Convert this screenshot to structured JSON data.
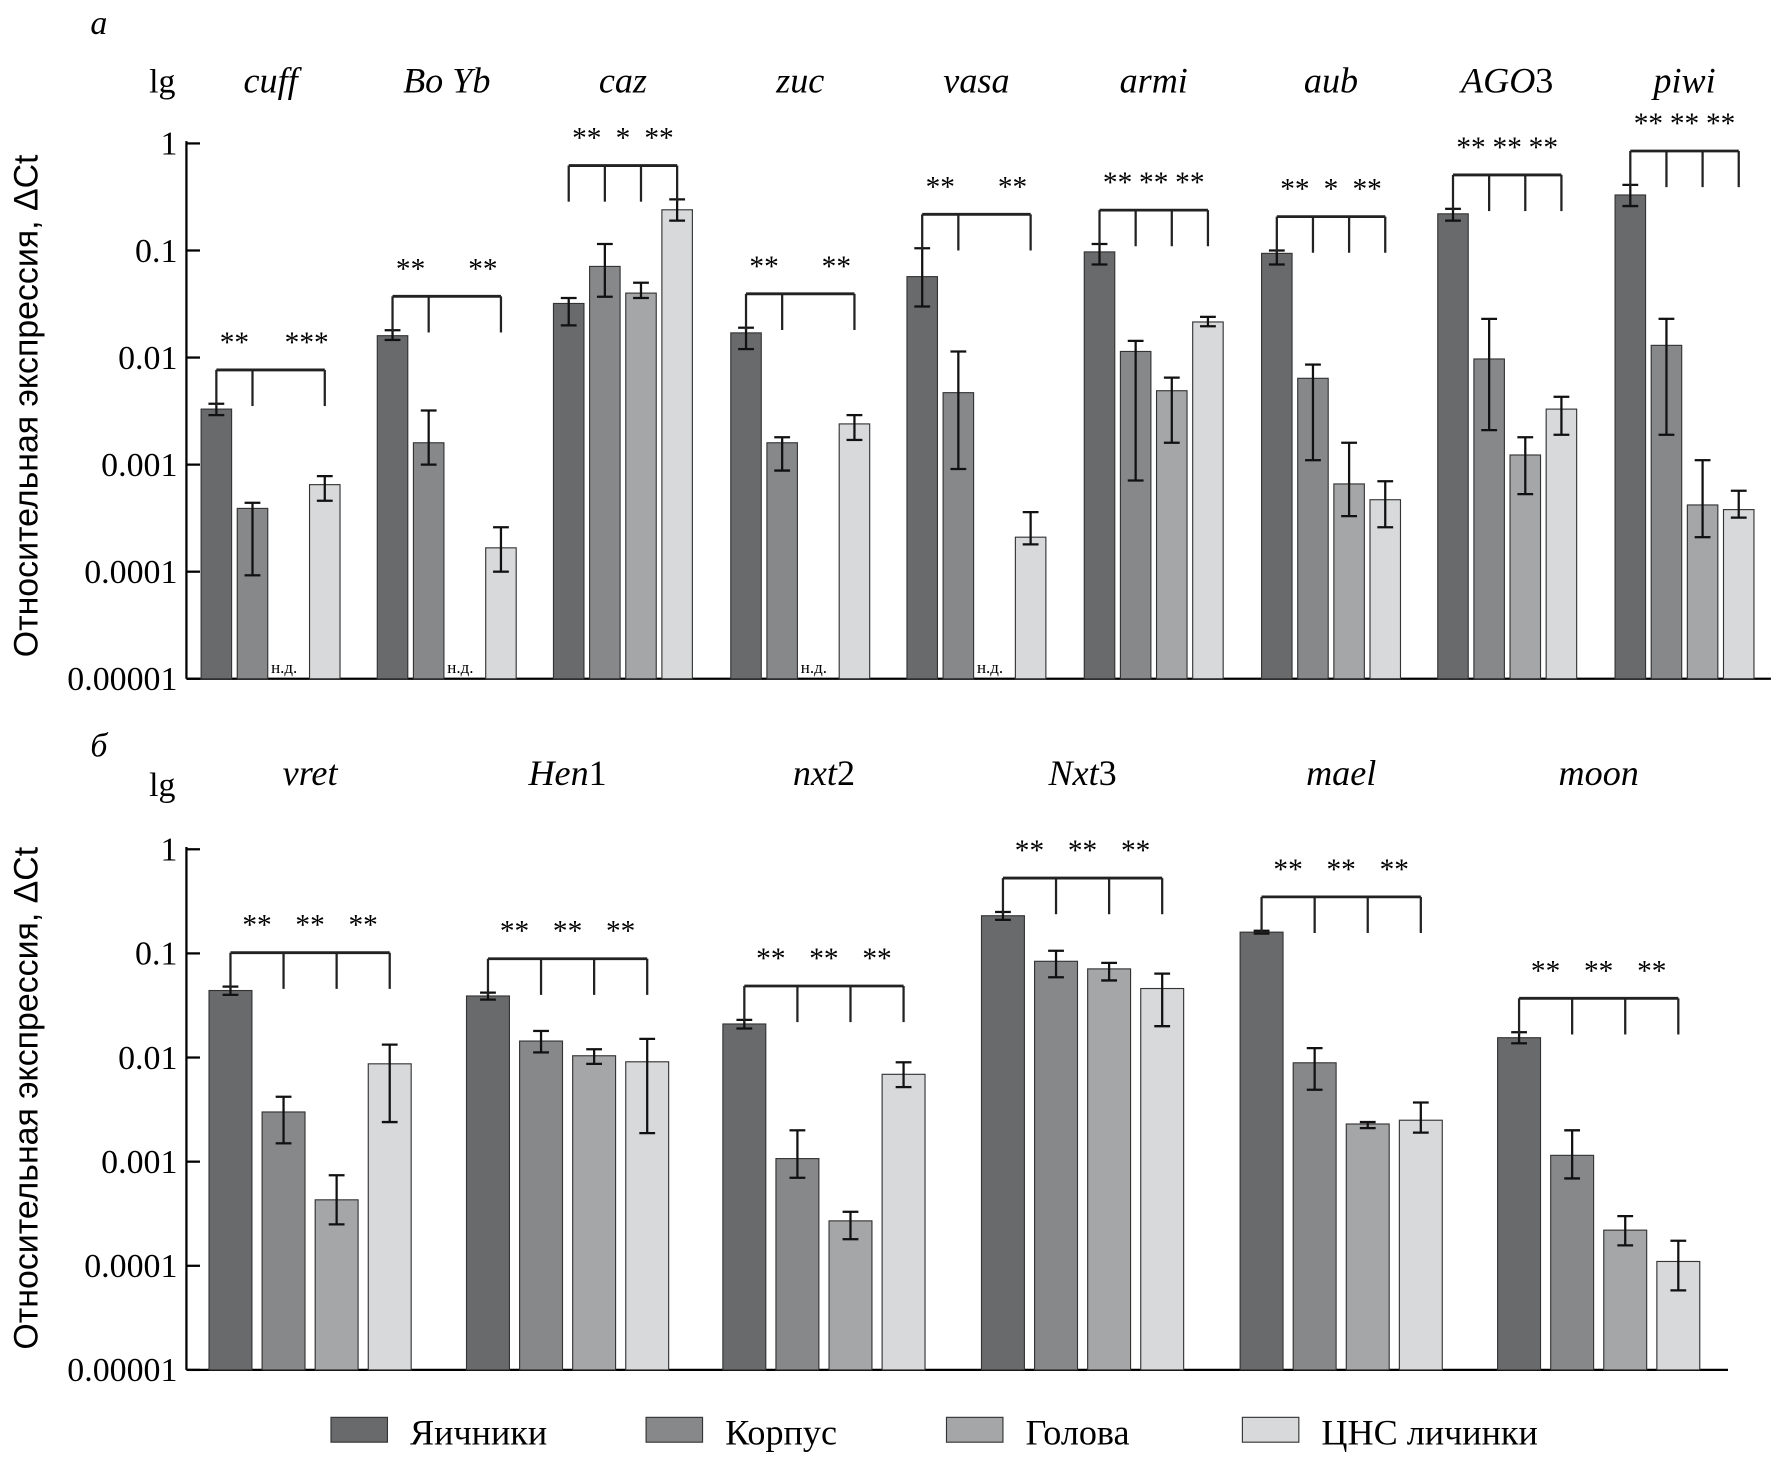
{
  "colors": {
    "Яичники": "#696a6c",
    "Корпус": "#87888a",
    "Голова": "#a5a6a8",
    "ЦНС личинки": "#d8d9da"
  },
  "legend": [
    "Яичники",
    "Корпус",
    "Голова",
    "ЦНС личинки"
  ],
  "ylabel": "Относительная экспрессия, ΔCt",
  "ylabel_prefix": "lg",
  "nd_label": "н.д.",
  "chart_data": [
    {
      "type": "bar",
      "panel": "а",
      "yscale": "log",
      "ylim": [
        1e-05,
        1
      ],
      "yticks": [
        "1",
        "0.1",
        "0.01",
        "0.001",
        "0.0001",
        "0.00001"
      ],
      "series_names": [
        "Яичники",
        "Корпус",
        "Голова",
        "ЦНС личинки"
      ],
      "groups": [
        {
          "gene": "cuff",
          "values": [
            0.0033,
            0.00039,
            null,
            0.00065
          ],
          "err": [
            [
              0.0029,
              0.0037
            ],
            [
              9.25e-05,
              0.00044
            ],
            null,
            [
              0.00046,
              0.00078
            ]
          ],
          "sig": [
            "**",
            null,
            "***"
          ]
        },
        {
          "gene": "Bo Yb",
          "values": [
            0.016,
            0.0016,
            null,
            0.000167
          ],
          "err": [
            [
              0.0146,
              0.018
            ],
            [
              0.001,
              0.0032
            ],
            null,
            [
              0.0001,
              0.00026
            ]
          ],
          "sig": [
            "**",
            null,
            "**"
          ]
        },
        {
          "gene": "caz",
          "values": [
            0.032,
            0.071,
            0.04,
            0.24
          ],
          "err": [
            [
              0.02,
              0.036
            ],
            [
              0.037,
              0.115
            ],
            [
              0.036,
              0.05
            ],
            [
              0.19,
              0.3
            ]
          ],
          "sig": [
            "**",
            "*",
            "**"
          ]
        },
        {
          "gene": "zuc",
          "values": [
            0.017,
            0.0016,
            null,
            0.0024
          ],
          "err": [
            [
              0.012,
              0.019
            ],
            [
              0.00088,
              0.0018
            ],
            null,
            [
              0.0017,
              0.0029
            ]
          ],
          "sig": [
            "**",
            null,
            "**"
          ]
        },
        {
          "gene": "vasa",
          "values": [
            0.057,
            0.0047,
            null,
            0.00021
          ],
          "err": [
            [
              0.03,
              0.105
            ],
            [
              0.00091,
              0.0114
            ],
            null,
            [
              0.00018,
              0.00036
            ]
          ],
          "sig": [
            "**",
            null,
            "**"
          ]
        },
        {
          "gene": "armi",
          "values": [
            0.097,
            0.0114,
            0.0049,
            0.0215
          ],
          "err": [
            [
              0.074,
              0.115
            ],
            [
              0.00071,
              0.0143
            ],
            [
              0.0016,
              0.0065
            ],
            [
              0.0196,
              0.024
            ]
          ],
          "sig": [
            "**",
            "**",
            "**"
          ]
        },
        {
          "gene": "aub",
          "values": [
            0.094,
            0.0064,
            0.00066,
            0.00047
          ],
          "err": [
            [
              0.074,
              0.1
            ],
            [
              0.0011,
              0.0086
            ],
            [
              0.00033,
              0.0016
            ],
            [
              0.00026,
              0.0007
            ]
          ],
          "sig": [
            "**",
            "*",
            "**"
          ]
        },
        {
          "gene": "AGO3",
          "values": [
            0.22,
            0.0097,
            0.00123,
            0.0033
          ],
          "err": [
            [
              0.19,
              0.245
            ],
            [
              0.0021,
              0.023
            ],
            [
              0.00053,
              0.0018
            ],
            [
              0.0019,
              0.0043
            ]
          ],
          "sig": [
            "**",
            "**",
            "**"
          ]
        },
        {
          "gene": "piwi",
          "values": [
            0.33,
            0.013,
            0.00042,
            0.00038
          ],
          "err": [
            [
              0.26,
              0.41
            ],
            [
              0.0019,
              0.023
            ],
            [
              0.00021,
              0.0011
            ],
            [
              0.00032,
              0.00057
            ]
          ],
          "sig": [
            "**",
            "**",
            "**"
          ]
        }
      ]
    },
    {
      "type": "bar",
      "panel": "б",
      "yscale": "log",
      "ylim": [
        1e-05,
        1
      ],
      "yticks": [
        "1",
        "0.1",
        "0.01",
        "0.001",
        "0.0001",
        "0.00001"
      ],
      "series_names": [
        "Яичники",
        "Корпус",
        "Голова",
        "ЦНС личинки"
      ],
      "groups": [
        {
          "gene": "vret",
          "values": [
            0.044,
            0.003,
            0.00043,
            0.0087
          ],
          "err": [
            [
              0.04,
              0.048
            ],
            [
              0.0015,
              0.0042
            ],
            [
              0.00025,
              0.00074
            ],
            [
              0.0024,
              0.0133
            ]
          ],
          "sig": [
            "**",
            "**",
            "**"
          ]
        },
        {
          "gene": "Hen1",
          "values": [
            0.039,
            0.0144,
            0.0104,
            0.0091
          ],
          "err": [
            [
              0.036,
              0.042
            ],
            [
              0.0112,
              0.018
            ],
            [
              0.0087,
              0.012
            ],
            [
              0.00188,
              0.0151
            ]
          ],
          "sig": [
            "**",
            "**",
            "**"
          ]
        },
        {
          "gene": "nxt2",
          "values": [
            0.021,
            0.00107,
            0.00027,
            0.0069
          ],
          "err": [
            [
              0.019,
              0.023
            ],
            [
              0.0007,
              0.002
            ],
            [
              0.00018,
              0.00033
            ],
            [
              0.0052,
              0.009
            ]
          ],
          "sig": [
            "**",
            "**",
            "**"
          ]
        },
        {
          "gene": "Nxt3",
          "values": [
            0.23,
            0.084,
            0.071,
            0.046
          ],
          "err": [
            [
              0.21,
              0.25
            ],
            [
              0.059,
              0.106
            ],
            [
              0.055,
              0.081
            ],
            [
              0.02,
              0.064
            ]
          ],
          "sig": [
            "**",
            "**",
            "**"
          ]
        },
        {
          "gene": "mael",
          "values": [
            0.16,
            0.0089,
            0.0023,
            0.0025
          ],
          "err": [
            [
              0.155,
              0.165
            ],
            [
              0.0049,
              0.0123
            ],
            [
              0.0021,
              0.0024
            ],
            [
              0.0019,
              0.0037
            ]
          ],
          "sig": [
            "**",
            "**",
            "**"
          ]
        },
        {
          "gene": "moon",
          "values": [
            0.0155,
            0.00115,
            0.00022,
            0.00011
          ],
          "err": [
            [
              0.0137,
              0.0175
            ],
            [
              0.00069,
              0.002
            ],
            [
              0.000157,
              0.0003
            ],
            [
              5.8e-05,
              0.000174
            ]
          ],
          "sig": [
            "**",
            "**",
            "**"
          ]
        }
      ]
    }
  ]
}
